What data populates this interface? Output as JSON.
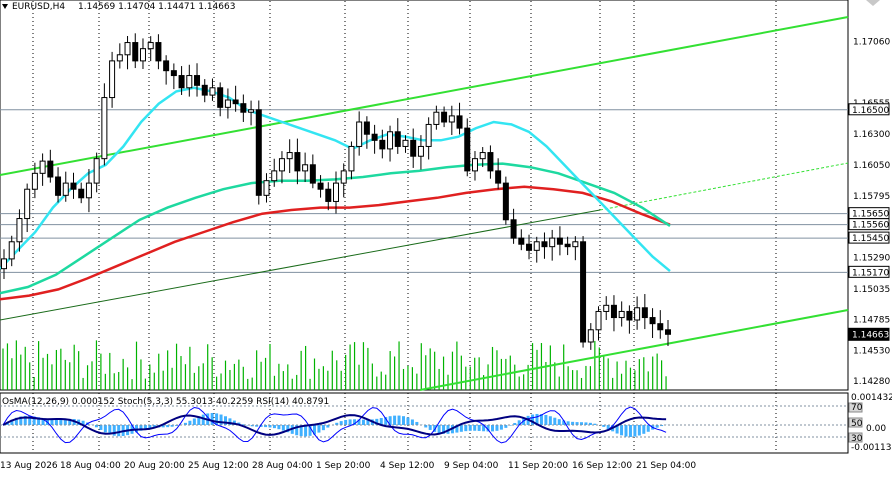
{
  "header": {
    "symbol": "EURUSD,H4",
    "ohlc": "1.14569 1.14704 1.14471 1.14663"
  },
  "price_axis": {
    "labels": [
      "1.17060",
      "1.16555",
      "1.16300",
      "1.16050",
      "1.15795",
      "1.15290",
      "1.15035",
      "1.14785",
      "1.14530",
      "1.14280"
    ],
    "level_labels": [
      {
        "text": "1.16500",
        "value": 1.165
      },
      {
        "text": "1.15650",
        "value": 1.1565
      },
      {
        "text": "1.15560",
        "value": 1.1556
      },
      {
        "text": "1.15450",
        "value": 1.1545
      },
      {
        "text": "1.15170",
        "value": 1.1517
      }
    ],
    "current_price": {
      "text": "1.14663",
      "value": 1.14663
    }
  },
  "time_axis": {
    "labels": [
      "13 Aug 2026",
      "18 Aug 04:00",
      "20 Aug 20:00",
      "25 Aug 12:00",
      "28 Aug 04:00",
      "1 Sep 20:00",
      "4 Sep 12:00",
      "9 Sep 04:00",
      "11 Sep 20:00",
      "16 Sep 12:00",
      "21 Sep 04:00"
    ]
  },
  "indicator": {
    "title": "OsMA(12,26,9) 0.000152  Stoch(5,3,3) 55.3013 40.2259  RSI(14) 40.8791",
    "axis_labels": [
      "0.001432",
      "70",
      "50",
      "30",
      "0.00",
      "-0.00113"
    ]
  },
  "colors": {
    "background": "#ffffff",
    "candle": "#000000",
    "volume": "#00b300",
    "channel": "#33e033",
    "ema_fast": "#33e5f2",
    "ema_mid": "#1ed9a0",
    "ema_slow": "#e02020",
    "support_line": "#1a6b1a",
    "osma_bars": "#40b0ff",
    "stoch_main": "#0000ff",
    "rsi": "#000080",
    "level_line": "#8090a0"
  },
  "chart_data": {
    "type": "line",
    "symbol": "EURUSD",
    "timeframe": "H4",
    "ylim": [
      1.1424,
      1.1721
    ],
    "ohlc_last": {
      "open": 1.14569,
      "high": 1.14704,
      "low": 1.14471,
      "close": 1.14663
    },
    "close_series": [
      1.1528,
      1.1542,
      1.1561,
      1.1585,
      1.1598,
      1.1608,
      1.1595,
      1.158,
      1.159,
      1.1585,
      1.1578,
      1.159,
      1.161,
      1.166,
      1.169,
      1.1695,
      1.1705,
      1.169,
      1.17,
      1.1705,
      1.169,
      1.1682,
      1.1678,
      1.1668,
      1.1678,
      1.167,
      1.1662,
      1.1668,
      1.1652,
      1.1658,
      1.1655,
      1.1648,
      1.165,
      1.158,
      1.1592,
      1.16,
      1.161,
      1.1615,
      1.16,
      1.1605,
      1.159,
      1.1585,
      1.1575,
      1.159,
      1.16,
      1.162,
      1.164,
      1.163,
      1.1625,
      1.1618,
      1.1632,
      1.162,
      1.1625,
      1.1612,
      1.162,
      1.1638,
      1.1648,
      1.164,
      1.1645,
      1.1635,
      1.16,
      1.161,
      1.1615,
      1.16,
      1.159,
      1.156,
      1.1545,
      1.154,
      1.1535,
      1.1542,
      1.1538,
      1.1545,
      1.154,
      1.1538,
      1.1542,
      1.146,
      1.147,
      1.1485,
      1.149,
      1.148,
      1.1485,
      1.1478,
      1.1488,
      1.148,
      1.1475,
      1.147,
      1.14663
    ],
    "series": [
      {
        "name": "EMA fast",
        "values": [
          1.152,
          1.1535,
          1.155,
          1.157,
          1.1585,
          1.1598,
          1.1605,
          1.162,
          1.164,
          1.1655,
          1.1665,
          1.1668,
          1.1665,
          1.166,
          1.165,
          1.1645,
          1.164,
          1.1635,
          1.163,
          1.1625,
          1.1618,
          1.1625,
          1.163,
          1.1628,
          1.1625,
          1.1625,
          1.1628,
          1.1635,
          1.164,
          1.1638,
          1.1632,
          1.162,
          1.1605,
          1.159,
          1.1575,
          1.156,
          1.1545,
          1.153,
          1.1518
        ]
      },
      {
        "name": "EMA mid",
        "values": [
          1.15,
          1.1505,
          1.1515,
          1.153,
          1.1545,
          1.156,
          1.157,
          1.1578,
          1.1585,
          1.159,
          1.1592,
          1.1592,
          1.1593,
          1.1595,
          1.1598,
          1.16,
          1.1603,
          1.1605,
          1.1606,
          1.1603,
          1.1598,
          1.159,
          1.1582,
          1.157,
          1.1555
        ]
      },
      {
        "name": "EMA slow",
        "values": [
          1.1495,
          1.1498,
          1.1503,
          1.1512,
          1.1522,
          1.1532,
          1.1542,
          1.155,
          1.1558,
          1.1565,
          1.1568,
          1.157,
          1.157,
          1.1572,
          1.1575,
          1.1578,
          1.1582,
          1.1585,
          1.1587,
          1.1585,
          1.1582,
          1.1575,
          1.1565,
          1.1556
        ]
      }
    ],
    "horizontal_levels": [
      1.165,
      1.1565,
      1.1556,
      1.1545,
      1.1517
    ],
    "grid": true
  }
}
